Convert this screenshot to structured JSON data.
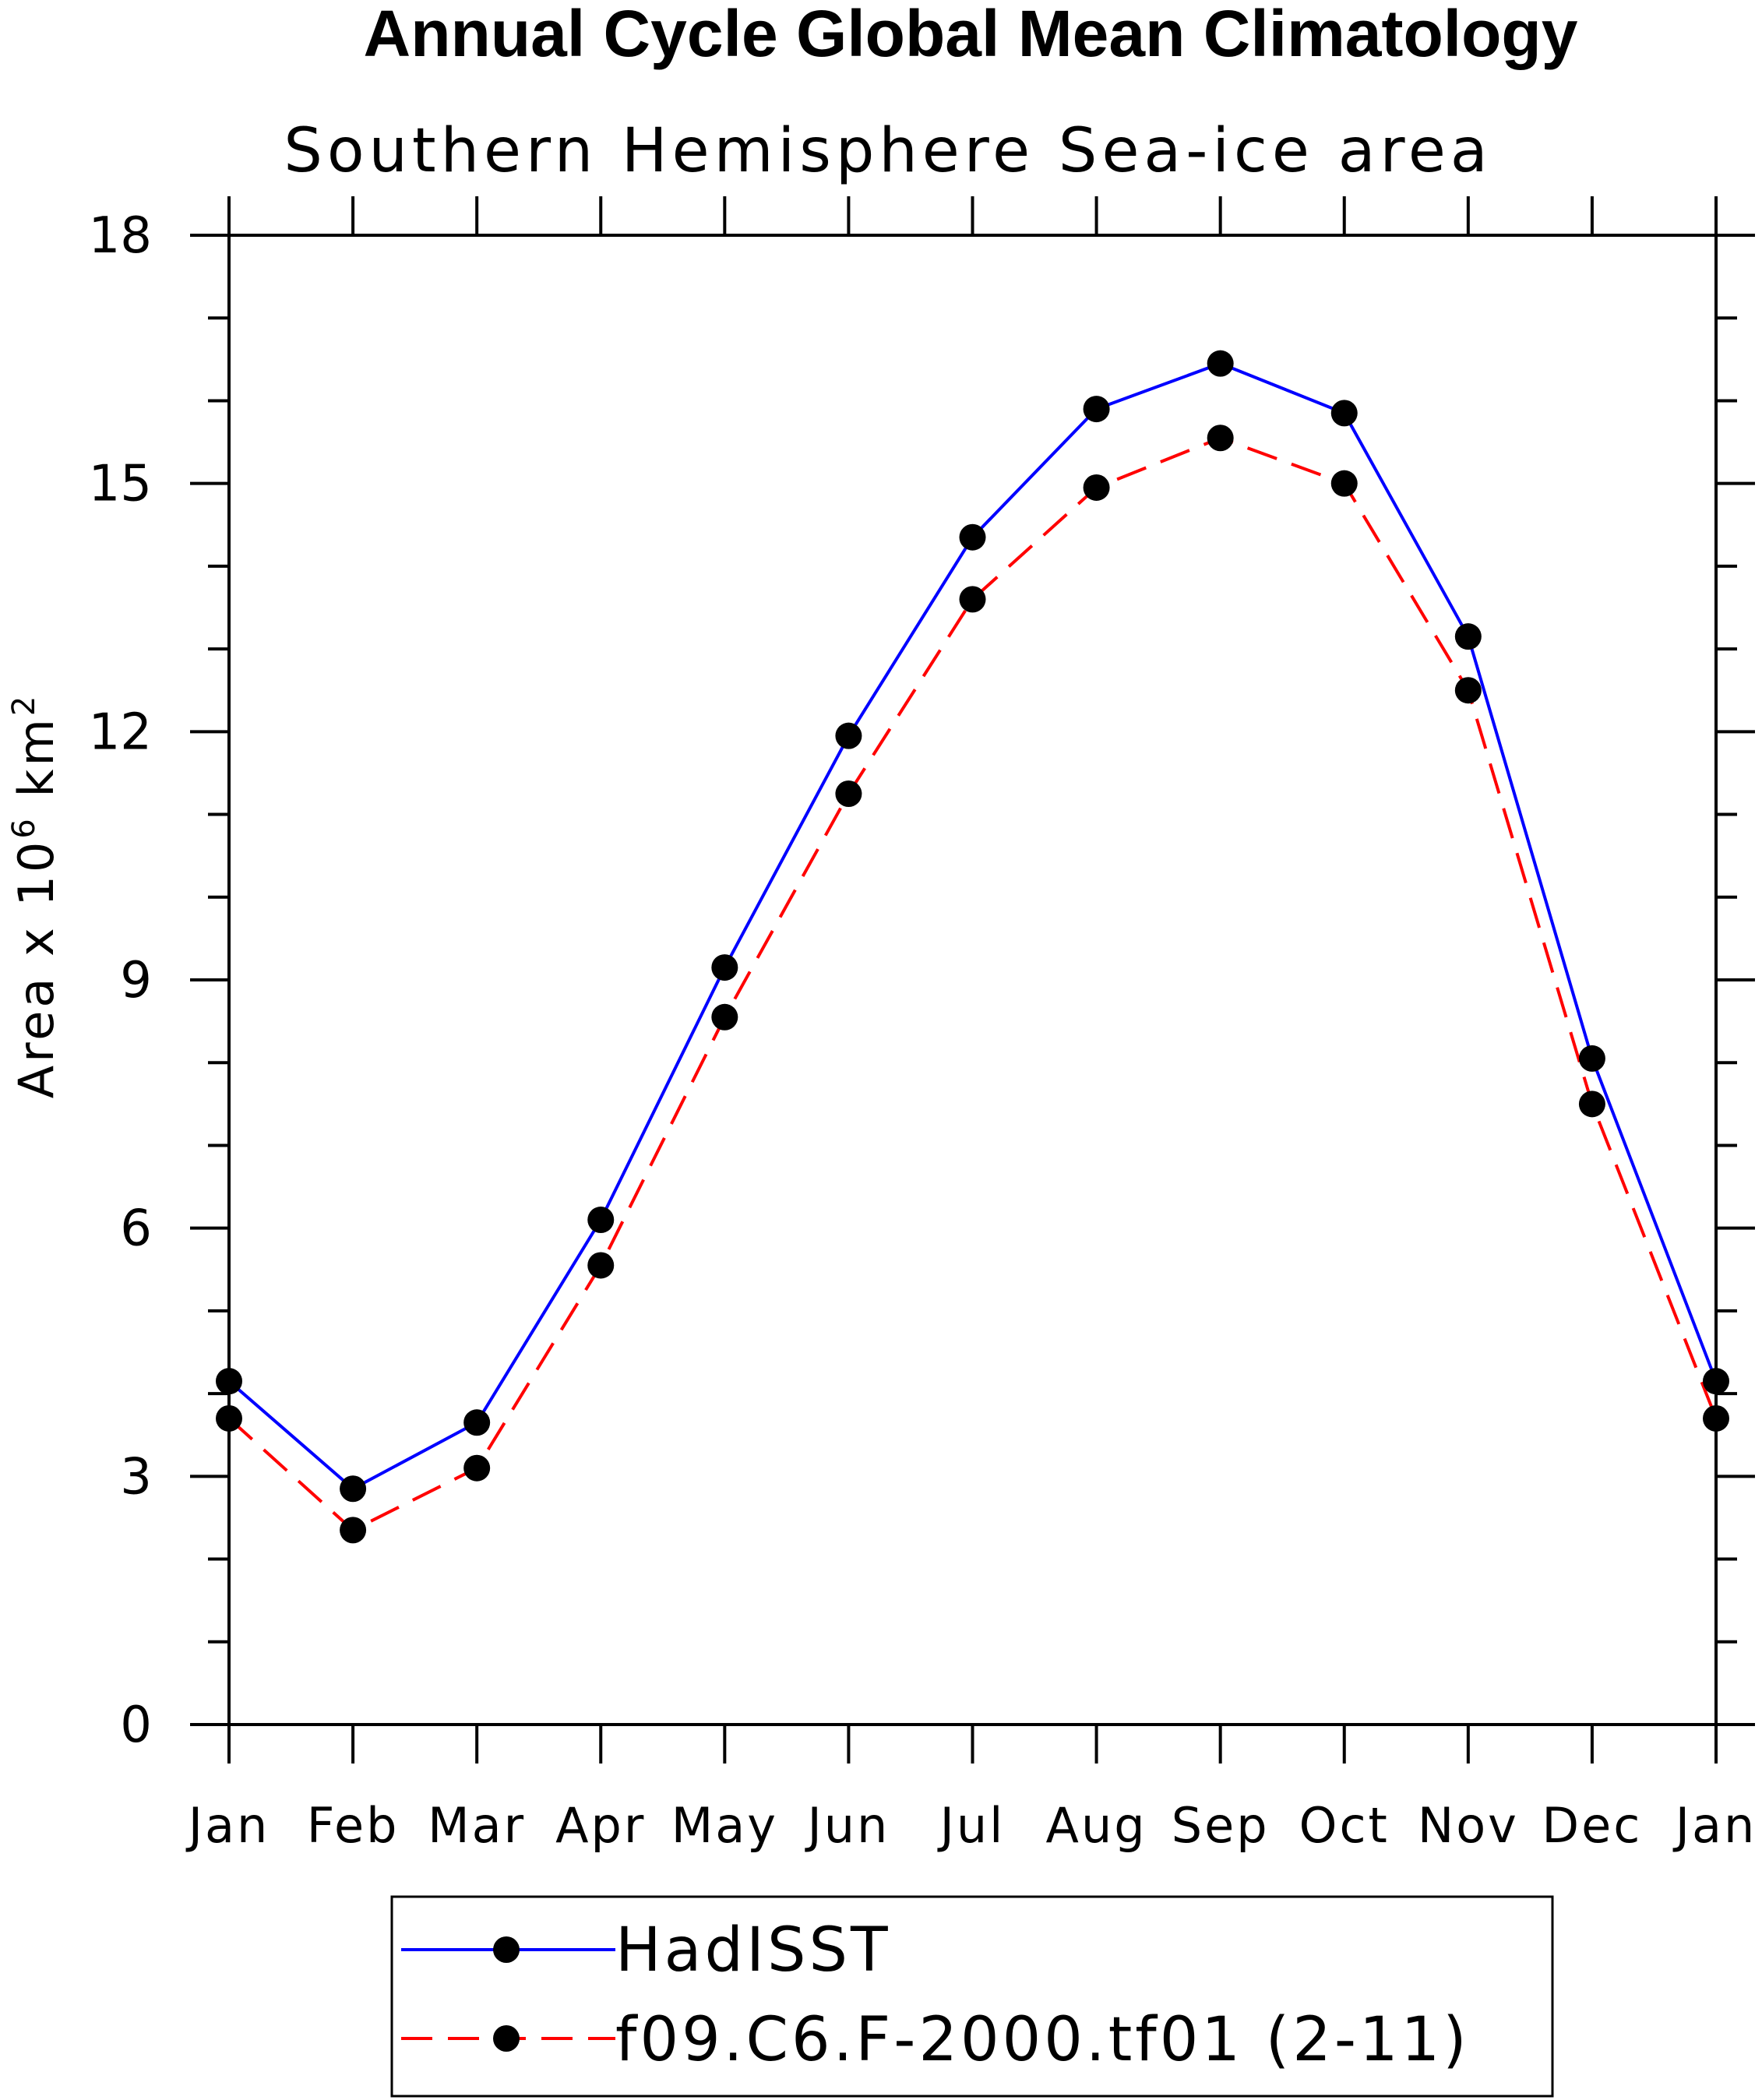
{
  "chart_data": {
    "type": "line",
    "title": "Annual Cycle Global Mean Climatology",
    "subtitle": "Southern Hemisphere Sea-ice area",
    "ylabel_prefix": "Area x 10",
    "ylabel_exponent": "6",
    "ylabel_unit": " km",
    "ylabel_unit_exponent": "2",
    "categories": [
      "Jan",
      "Feb",
      "Mar",
      "Apr",
      "May",
      "Jun",
      "Jul",
      "Aug",
      "Sep",
      "Oct",
      "Nov",
      "Dec",
      "Jan"
    ],
    "ylim": [
      0,
      18
    ],
    "yticks": [
      0,
      3,
      6,
      9,
      12,
      15,
      18
    ],
    "ytick_labels": [
      "0",
      "3",
      "6",
      "9",
      "12",
      "15",
      "18"
    ],
    "y_minor_step": 1,
    "grid": false,
    "legend_position": "bottom",
    "series": [
      {
        "name": "HadISST",
        "color": "#0000ff",
        "line_style": "solid",
        "marker": "filled-circle",
        "values": [
          4.15,
          2.85,
          3.65,
          6.1,
          9.15,
          11.95,
          14.35,
          15.9,
          16.45,
          15.85,
          13.15,
          8.05,
          4.15
        ]
      },
      {
        "name": "f09.C6.F-2000.tf01 (2-11)",
        "color": "#ff0000",
        "line_style": "dashed",
        "marker": "filled-circle",
        "values": [
          3.7,
          2.35,
          3.1,
          5.55,
          8.55,
          11.25,
          13.6,
          14.95,
          15.55,
          15.0,
          12.5,
          7.5,
          3.7
        ]
      }
    ]
  }
}
